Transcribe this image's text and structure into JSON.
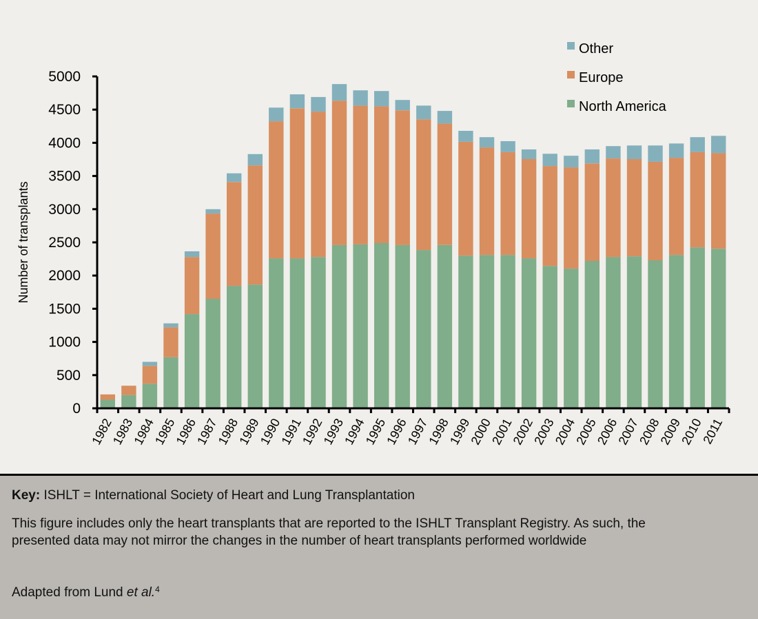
{
  "chart_data": {
    "type": "bar",
    "stacked": true,
    "title": "",
    "xlabel": "",
    "ylabel": "Number of transplants",
    "ylim": [
      0,
      5000
    ],
    "yticks": [
      0,
      500,
      1000,
      1500,
      2000,
      2500,
      3000,
      3500,
      4000,
      4500,
      5000
    ],
    "grid": false,
    "legend_position": "top-right",
    "categories": [
      "1982",
      "1983",
      "1984",
      "1985",
      "1986",
      "1987",
      "1988",
      "1989",
      "1990",
      "1991",
      "1992",
      "1993",
      "1994",
      "1995",
      "1996",
      "1997",
      "1998",
      "1999",
      "2000",
      "2001",
      "2002",
      "2003",
      "2004",
      "2005",
      "2006",
      "2007",
      "2008",
      "2009",
      "2010",
      "2011"
    ],
    "series": [
      {
        "name": "North America",
        "color": "#80ad8a",
        "values": [
          130,
          200,
          370,
          770,
          1420,
          1650,
          1845,
          1865,
          2260,
          2260,
          2280,
          2460,
          2470,
          2490,
          2460,
          2385,
          2460,
          2300,
          2310,
          2310,
          2260,
          2145,
          2105,
          2220,
          2280,
          2290,
          2230,
          2310,
          2425,
          2405
        ]
      },
      {
        "name": "Europe",
        "color": "#d88e5f",
        "values": [
          80,
          140,
          270,
          450,
          860,
          1285,
          1565,
          1795,
          2065,
          2260,
          2190,
          2175,
          2090,
          2060,
          2030,
          1970,
          1830,
          1715,
          1620,
          1550,
          1495,
          1505,
          1525,
          1470,
          1485,
          1465,
          1485,
          1465,
          1435,
          1440
        ]
      },
      {
        "name": "Other",
        "color": "#84b0bc",
        "values": [
          0,
          0,
          60,
          60,
          85,
          65,
          130,
          170,
          205,
          210,
          220,
          250,
          230,
          230,
          155,
          205,
          190,
          165,
          155,
          165,
          145,
          185,
          175,
          210,
          185,
          205,
          245,
          215,
          225,
          260
        ]
      }
    ],
    "legend": [
      "Other",
      "Europe",
      "North America"
    ]
  },
  "caption": {
    "key_label": "Key:",
    "key_text": " ISHLT = International Society of Heart and Lung Transplantation",
    "note": "This figure includes only the heart transplants that are reported to the ISHLT Transplant Registry. As such, the presented data may not mirror the changes in the number of heart transplants performed worldwide",
    "source_prefix": "Adapted from Lund ",
    "source_italic": "et al.",
    "source_ref": "4"
  }
}
